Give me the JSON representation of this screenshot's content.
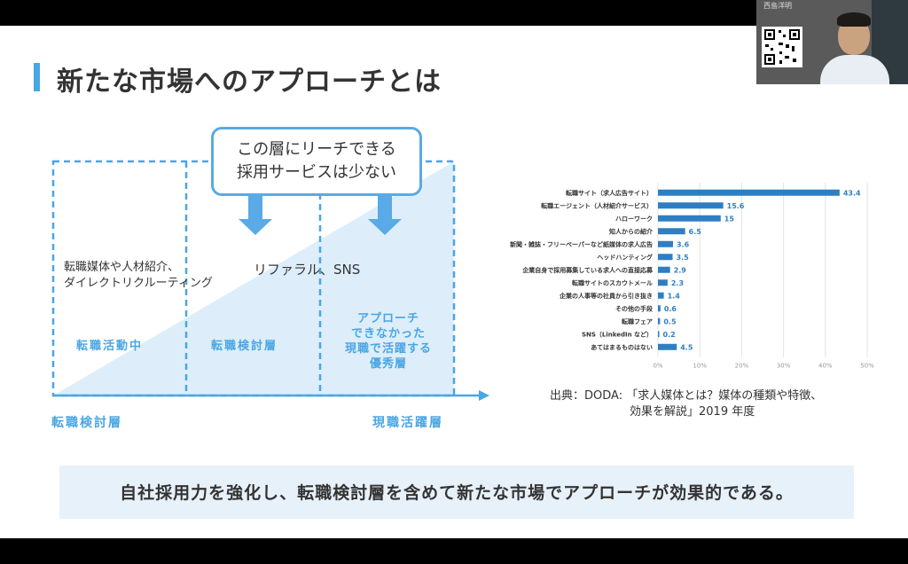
{
  "slide": {
    "title": "新たな市場へのアプローチとは",
    "callout": {
      "line1": "この層にリーチできる",
      "line2": "採用サービスは少ない"
    },
    "col1_desc": {
      "line1": "転職媒体や人材紹介、",
      "line2": "ダイレクトリクルーティング"
    },
    "col2_desc": "リファラル、SNS",
    "col1_label": "転職活動中",
    "col2_label": "転職検討層",
    "col3_label": [
      "アプローチ",
      "できなかった",
      "現職で活躍する",
      "優秀層"
    ],
    "axis_left": "転職検討層",
    "axis_right": "現職活躍層",
    "source": {
      "line1": "出典：DODA: 「求人媒体とは？媒体の種類や特徴、",
      "line2": "効果を解説」2019 年度"
    },
    "footer": "自社採用力を強化し、転職検討層を含めて新たな市場でアプローチが効果的である。"
  },
  "colors": {
    "accent": "#49a6e4",
    "bar": "#2e7fc2",
    "light": "#ddeefa"
  },
  "camera": {
    "name": "西島洋明",
    "icons": [
      "qr-code-icon"
    ]
  },
  "chart_data": {
    "type": "bar",
    "orientation": "horizontal",
    "categories": [
      "転職サイト（求人広告サイト）",
      "転職エージェント（人材紹介サービス）",
      "ハローワーク",
      "知人からの紹介",
      "新聞・雑誌・フリーペーパーなど紙媒体の求人広告",
      "ヘッドハンティング",
      "企業自身で採用募集している求人への直接応募",
      "転職サイトのスカウトメール",
      "企業の人事等の社員から引き抜き",
      "その他の手段",
      "転職フェア",
      "SNS（LinkedIn など）",
      "あてはまるものはない"
    ],
    "values": [
      43.4,
      15.6,
      15,
      6.5,
      3.6,
      3.5,
      2.9,
      2.3,
      1.4,
      0.6,
      0.5,
      0.2,
      4.5
    ],
    "value_labels": [
      "43.4",
      "15.6",
      "15",
      "6.5",
      "3.6",
      "3.5",
      "2.9",
      "2.3",
      "1.4",
      "0.6",
      "0.5",
      "0.2",
      "4.5"
    ],
    "xticks": [
      "0%",
      "10%",
      "20%",
      "30%",
      "40%",
      "50%"
    ],
    "xlim": [
      0,
      50
    ],
    "grid": true
  }
}
